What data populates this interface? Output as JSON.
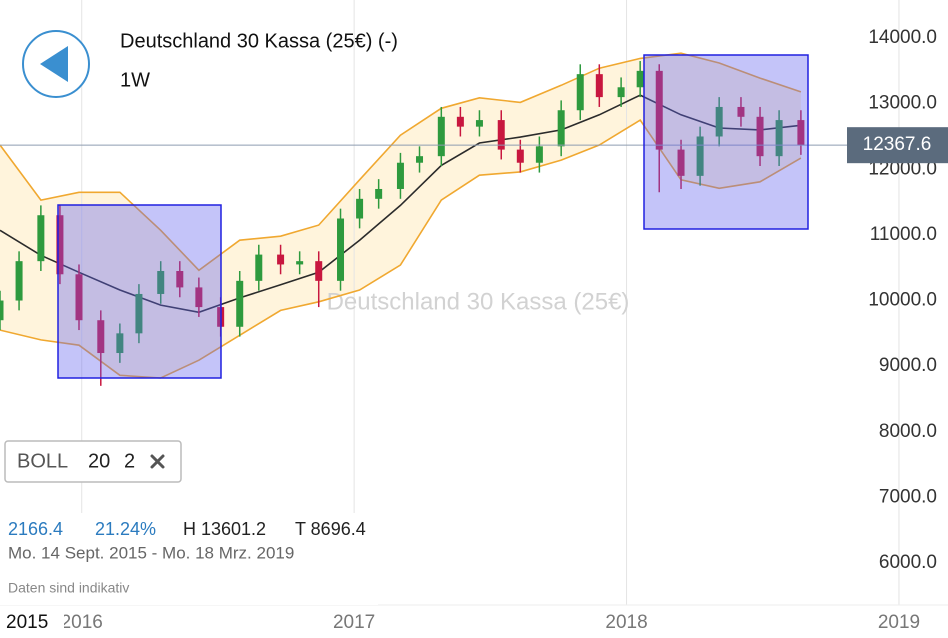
{
  "header": {
    "title": "Deutschland 30 Kassa (25€) (-)",
    "interval": "1W"
  },
  "chart_data": {
    "type": "candlestick",
    "watermark": "Deutschland 30 Kassa (25€)",
    "x": [
      2015.7,
      2015.77,
      2015.85,
      2015.92,
      2015.99,
      2016.07,
      2016.14,
      2016.21,
      2016.29,
      2016.36,
      2016.43,
      2016.51,
      2016.58,
      2016.65,
      2016.73,
      2016.8,
      2016.87,
      2016.95,
      2017.02,
      2017.09,
      2017.17,
      2017.24,
      2017.32,
      2017.39,
      2017.46,
      2017.54,
      2017.61,
      2017.68,
      2017.76,
      2017.83,
      2017.9,
      2017.98,
      2018.05,
      2018.12,
      2018.2,
      2018.27,
      2018.34,
      2018.42,
      2018.49,
      2018.56,
      2018.64
    ],
    "open": [
      9700,
      10000,
      10600,
      11300,
      10400,
      9700,
      9200,
      9500,
      10100,
      10450,
      10200,
      9900,
      9600,
      10300,
      10700,
      10550,
      10600,
      10300,
      11250,
      11550,
      11700,
      12100,
      12200,
      12800,
      12650,
      12750,
      12300,
      12100,
      12350,
      12900,
      13450,
      13100,
      13250,
      13500,
      12300,
      11900,
      12500,
      12950,
      12800,
      12200,
      12750
    ],
    "high": [
      10150,
      10750,
      11450,
      11450,
      10550,
      9850,
      9650,
      10250,
      10600,
      10600,
      10350,
      10050,
      10450,
      10850,
      10850,
      10750,
      10750,
      11400,
      11700,
      11850,
      12250,
      12350,
      12950,
      12950,
      12900,
      12900,
      12450,
      12500,
      13050,
      13600,
      13600,
      13400,
      13650,
      13600,
      12450,
      12650,
      13100,
      13100,
      12950,
      12900,
      12900
    ],
    "low": [
      9550,
      9850,
      10450,
      10250,
      9550,
      8700,
      9050,
      9350,
      9950,
      10050,
      9750,
      9450,
      9450,
      10150,
      10400,
      10400,
      9900,
      10150,
      11100,
      11400,
      11550,
      11950,
      12050,
      12500,
      12500,
      12150,
      11950,
      11950,
      12200,
      12750,
      12950,
      12950,
      13100,
      11650,
      11700,
      11750,
      12350,
      12650,
      12050,
      12050,
      12220
    ],
    "close": [
      10000,
      10600,
      11300,
      10400,
      9700,
      9200,
      9500,
      10100,
      10450,
      10200,
      9900,
      9600,
      10300,
      10700,
      10550,
      10600,
      10300,
      11250,
      11550,
      11700,
      12100,
      12200,
      12800,
      12650,
      12750,
      12300,
      12100,
      12350,
      12900,
      13450,
      13100,
      13250,
      13500,
      12300,
      11900,
      12500,
      12950,
      12800,
      12200,
      12750,
      12370
    ],
    "up_color": "#2e9a3e",
    "down_color": "#c8173f",
    "bands": {
      "x": [
        2015.7,
        2015.85,
        2015.99,
        2016.14,
        2016.29,
        2016.43,
        2016.58,
        2016.73,
        2016.87,
        2017.02,
        2017.17,
        2017.32,
        2017.46,
        2017.61,
        2017.76,
        2017.9,
        2018.05,
        2018.2,
        2018.34,
        2018.49,
        2018.64
      ],
      "upper": [
        12370,
        11530,
        11650,
        11650,
        11070,
        10460,
        10920,
        10980,
        11150,
        11840,
        12520,
        12930,
        13090,
        13020,
        13280,
        13540,
        13690,
        13770,
        13620,
        13390,
        13180
      ],
      "middle": [
        11070,
        10690,
        10430,
        10160,
        9930,
        9820,
        10040,
        10240,
        10430,
        10920,
        11450,
        12060,
        12400,
        12490,
        12600,
        12830,
        13130,
        12830,
        12630,
        12600,
        12670
      ],
      "lower": [
        9550,
        9400,
        9320,
        8860,
        8820,
        9090,
        9470,
        9850,
        9980,
        10160,
        10540,
        11530,
        11910,
        11960,
        12140,
        12370,
        12750,
        11840,
        11710,
        11810,
        12170
      ],
      "band_color": "#f0a830",
      "middle_color": "#2b2b2b",
      "fill": "#fff4dc"
    },
    "last_price": 12367.6,
    "xlim": [
      2015.7,
      2019.18
    ],
    "xticks": [
      2016,
      2017,
      2018,
      2019
    ],
    "ylim": [
      5360,
      14580
    ],
    "yticks": [
      {
        "value": 6000,
        "label": "6000.0"
      },
      {
        "value": 7000,
        "label": "7000.0"
      },
      {
        "value": 8000,
        "label": "8000.0"
      },
      {
        "value": 9000,
        "label": "9000.0"
      },
      {
        "value": 10000,
        "label": "10000.0"
      },
      {
        "value": 11000,
        "label": "11000.0"
      },
      {
        "value": 12000,
        "label": "12000.0"
      },
      {
        "value": 13000,
        "label": "13000.0"
      },
      {
        "value": 14000,
        "label": "14000.0"
      }
    ],
    "grid": true
  },
  "indicator": {
    "name": "BOLL",
    "period": 20,
    "deviation": 2
  },
  "stats": {
    "change": "2166.4",
    "change_percent": "21.24%",
    "high": "H 13601.2",
    "low": "T 8696.4",
    "range": "Mo. 14 Sept. 2015 - Mo. 18 Mrz. 2019",
    "note": "Daten sind indikativ"
  },
  "edge_label": "2015"
}
